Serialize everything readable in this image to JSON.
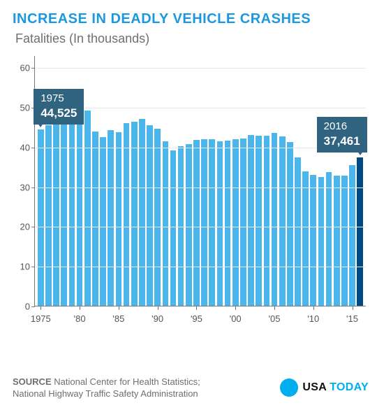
{
  "title": "INCREASE IN DEADLY VEHICLE CRASHES",
  "subtitle": "Fatalities (In thousands)",
  "chart": {
    "type": "bar",
    "ymax": 63,
    "yticks": [
      0,
      10,
      20,
      30,
      40,
      50,
      60
    ],
    "bar_color": "#4bb6eb",
    "highlight_color": "#004a84",
    "grid_color": "#e9e9e9",
    "axis_color": "#777777",
    "background_color": "#ffffff",
    "years_start": 1975,
    "years_end": 2016,
    "xticks": [
      1975,
      1980,
      1985,
      1990,
      1995,
      2000,
      2005,
      2010,
      2015
    ],
    "xtick_labels": [
      "1975",
      "'80",
      "'85",
      "'90",
      "'95",
      "'00",
      "'05",
      "'10",
      "'15"
    ],
    "values": [
      44.525,
      45.523,
      47.878,
      50.331,
      51.093,
      51.091,
      49.301,
      43.945,
      42.589,
      44.257,
      43.825,
      46.087,
      46.39,
      47.087,
      45.582,
      44.599,
      41.508,
      39.25,
      40.15,
      40.716,
      41.817,
      42.065,
      42.013,
      41.501,
      41.717,
      41.945,
      42.196,
      43.005,
      42.884,
      42.836,
      43.51,
      42.708,
      41.259,
      37.423,
      33.883,
      32.999,
      32.479,
      33.782,
      32.894,
      32.744,
      35.485,
      37.461
    ],
    "highlight_index": 41,
    "callouts": [
      {
        "year": "1975",
        "value": "44,525",
        "bar_index": 0
      },
      {
        "year": "2016",
        "value": "37,461",
        "bar_index": 41
      }
    ]
  },
  "callout_bg": "#2f637f",
  "source_label": "SOURCE",
  "source_text": "National Center for Health Statistics; National Highway Traffic Safety Administration",
  "brand": {
    "usa": "USA",
    "today": "TODAY",
    "dot_color": "#00aeef"
  }
}
